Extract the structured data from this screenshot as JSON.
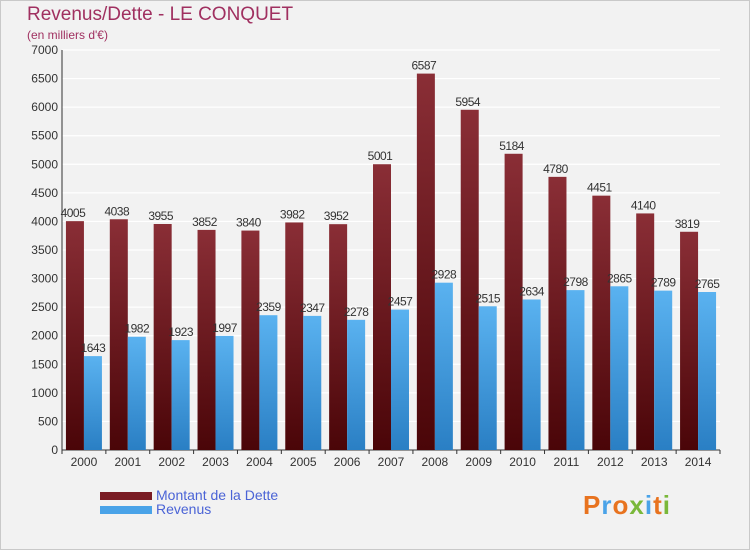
{
  "chart_data": {
    "type": "bar",
    "title": "Revenus/Dette - LE CONQUET",
    "subtitle": "(en milliers d'€)",
    "categories": [
      "2000",
      "2001",
      "2002",
      "2003",
      "2004",
      "2005",
      "2006",
      "2007",
      "2008",
      "2009",
      "2010",
      "2011",
      "2012",
      "2013",
      "2014"
    ],
    "series": [
      {
        "name": "Montant de la Dette",
        "color": "#7a1c24",
        "values": [
          4005,
          4038,
          3955,
          3852,
          3840,
          3982,
          3952,
          5001,
          6587,
          5954,
          5184,
          4780,
          4451,
          4140,
          3819
        ]
      },
      {
        "name": "Revenus",
        "color": "#4aa3e8",
        "values": [
          1643,
          1982,
          1923,
          1997,
          2359,
          2347,
          2278,
          2457,
          2928,
          2515,
          2634,
          2798,
          2865,
          2789,
          2765
        ]
      }
    ],
    "ylim": [
      0,
      7000
    ],
    "yticks": [
      0,
      500,
      1000,
      1500,
      2000,
      2500,
      3000,
      3500,
      4000,
      4500,
      5000,
      5500,
      6000,
      6500,
      7000
    ],
    "grid": true,
    "legend_position": "bottom-left",
    "xlabel": "",
    "ylabel": ""
  },
  "logo": {
    "text": "Proxiti"
  }
}
